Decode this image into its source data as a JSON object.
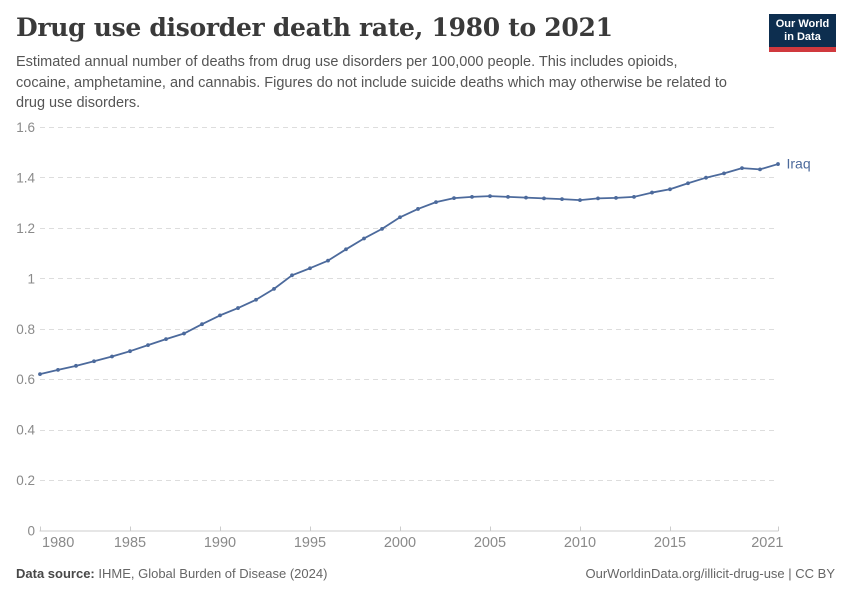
{
  "header": {
    "title": "Drug use disorder death rate, 1980 to 2021",
    "subtitle_lines": [
      "Estimated annual number of deaths from drug use disorders per 100,000 people. This includes opioids,",
      "cocaine, amphetamine, and cannabis. Figures do not include suicide deaths which may otherwise be related to",
      "drug use disorders."
    ],
    "logo": {
      "line1": "Our World",
      "line2": "in Data"
    }
  },
  "footer": {
    "source_label": "Data source:",
    "source_text": " IHME, Global Burden of Disease (2024)",
    "credit": "OurWorldinData.org/illicit-drug-use | CC BY"
  },
  "colors": {
    "line": "#4C6A9C",
    "gridline": "#dddddd",
    "axis": "#cccccc",
    "tick_label": "#8a8a8a",
    "logo_bg": "#0d2e4f",
    "logo_bar": "#d0393e"
  },
  "chart_data": {
    "type": "line",
    "title": "Drug use disorder death rate, 1980 to 2021",
    "xlabel": "",
    "ylabel": "",
    "xlim": [
      1980,
      2021
    ],
    "ylim": [
      0,
      1.6
    ],
    "xticks": [
      1980,
      1985,
      1990,
      1995,
      2000,
      2005,
      2010,
      2015,
      2021
    ],
    "yticks": [
      0,
      0.2,
      0.4,
      0.6,
      0.8,
      1,
      1.2,
      1.4,
      1.6
    ],
    "grid": "horizontal-dashed",
    "legend_position": "end-of-line-label",
    "series": [
      {
        "name": "Iraq",
        "color": "#4C6A9C",
        "x": [
          1980,
          1981,
          1982,
          1983,
          1984,
          1985,
          1986,
          1987,
          1988,
          1989,
          1990,
          1991,
          1992,
          1993,
          1994,
          1995,
          1996,
          1997,
          1998,
          1999,
          2000,
          2001,
          2002,
          2003,
          2004,
          2005,
          2006,
          2007,
          2008,
          2009,
          2010,
          2011,
          2012,
          2013,
          2014,
          2015,
          2016,
          2017,
          2018,
          2019,
          2020,
          2021
        ],
        "values": [
          0.62,
          0.637,
          0.653,
          0.671,
          0.69,
          0.711,
          0.735,
          0.759,
          0.781,
          0.818,
          0.853,
          0.882,
          0.915,
          0.958,
          1.012,
          1.04,
          1.07,
          1.115,
          1.158,
          1.196,
          1.242,
          1.275,
          1.302,
          1.318,
          1.323,
          1.326,
          1.323,
          1.32,
          1.317,
          1.314,
          1.31,
          1.317,
          1.319,
          1.323,
          1.34,
          1.353,
          1.377,
          1.399,
          1.416,
          1.437,
          1.432,
          1.453
        ]
      }
    ]
  }
}
